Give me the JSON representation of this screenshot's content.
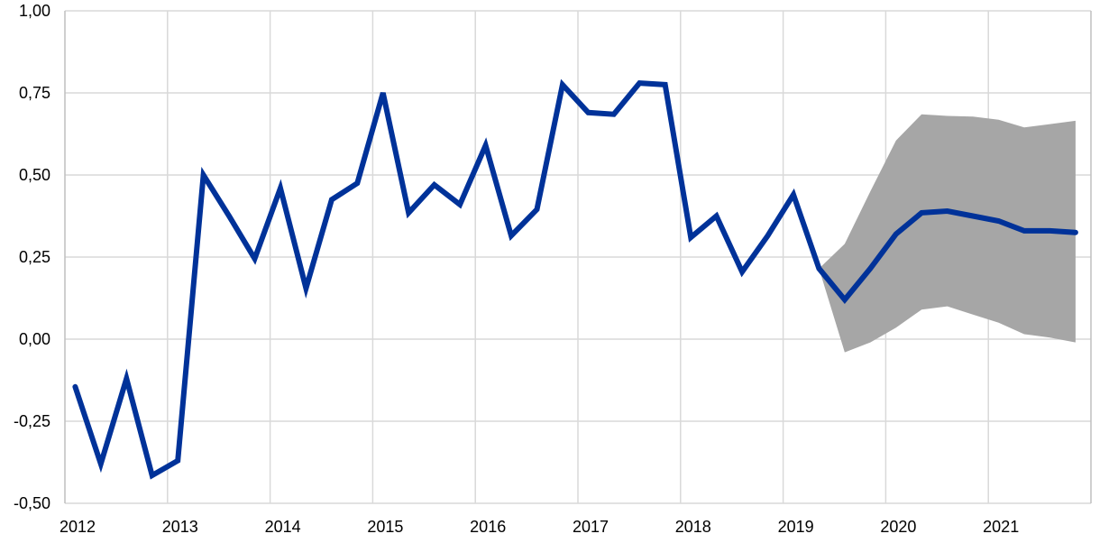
{
  "chart_data": {
    "type": "line",
    "xlim": [
      2012,
      2022
    ],
    "ylim": [
      -0.5,
      1.0
    ],
    "grid": true,
    "x_ticks": [
      2012,
      2013,
      2014,
      2015,
      2016,
      2017,
      2018,
      2019,
      2020,
      2021
    ],
    "x_tick_labels": [
      "2012",
      "2013",
      "2014",
      "2015",
      "2016",
      "2017",
      "2018",
      "2019",
      "2020",
      "2021"
    ],
    "y_ticks": [
      -0.5,
      -0.25,
      0.0,
      0.25,
      0.5,
      0.75,
      1.0
    ],
    "y_tick_labels": [
      "-0,50",
      "-0,25",
      "0,00",
      "0,25",
      "0,50",
      "0,75",
      "1,00"
    ],
    "colors": {
      "line": "#003299",
      "band": "#a6a6a6",
      "grid": "#d9d9d9"
    },
    "series": [
      {
        "type": "line",
        "x": [
          2012.1,
          2012.35,
          2012.6,
          2012.85,
          2013.1,
          2013.35,
          2013.6,
          2013.85,
          2014.1,
          2014.35,
          2014.6,
          2014.85,
          2015.1,
          2015.35,
          2015.6,
          2015.85,
          2016.1,
          2016.35,
          2016.6,
          2016.85,
          2017.1,
          2017.35,
          2017.6,
          2017.85,
          2018.1,
          2018.35,
          2018.6,
          2018.85,
          2019.1,
          2019.35,
          2019.6,
          2019.85,
          2020.1,
          2020.35,
          2020.6,
          2020.85,
          2021.1,
          2021.35,
          2021.6,
          2021.85
        ],
        "values": [
          -0.145,
          -0.38,
          -0.12,
          -0.415,
          -0.37,
          0.5,
          0.375,
          0.245,
          0.46,
          0.155,
          0.425,
          0.475,
          0.75,
          0.385,
          0.47,
          0.41,
          0.59,
          0.315,
          0.395,
          0.775,
          0.69,
          0.685,
          0.78,
          0.775,
          0.31,
          0.375,
          0.205,
          0.315,
          0.44,
          0.215,
          0.12,
          0.215,
          0.32,
          0.385,
          0.39,
          0.375,
          0.36,
          0.33,
          0.33,
          0.325
        ]
      },
      {
        "type": "band",
        "x": [
          2019.35,
          2019.6,
          2019.85,
          2020.1,
          2020.35,
          2020.6,
          2020.85,
          2021.1,
          2021.35,
          2021.6,
          2021.85
        ],
        "upper": [
          0.215,
          0.29,
          0.45,
          0.605,
          0.685,
          0.68,
          0.678,
          0.668,
          0.645,
          0.655,
          0.665
        ],
        "lower": [
          0.215,
          -0.04,
          -0.01,
          0.035,
          0.09,
          0.1,
          0.075,
          0.05,
          0.015,
          0.005,
          -0.01
        ]
      }
    ]
  }
}
